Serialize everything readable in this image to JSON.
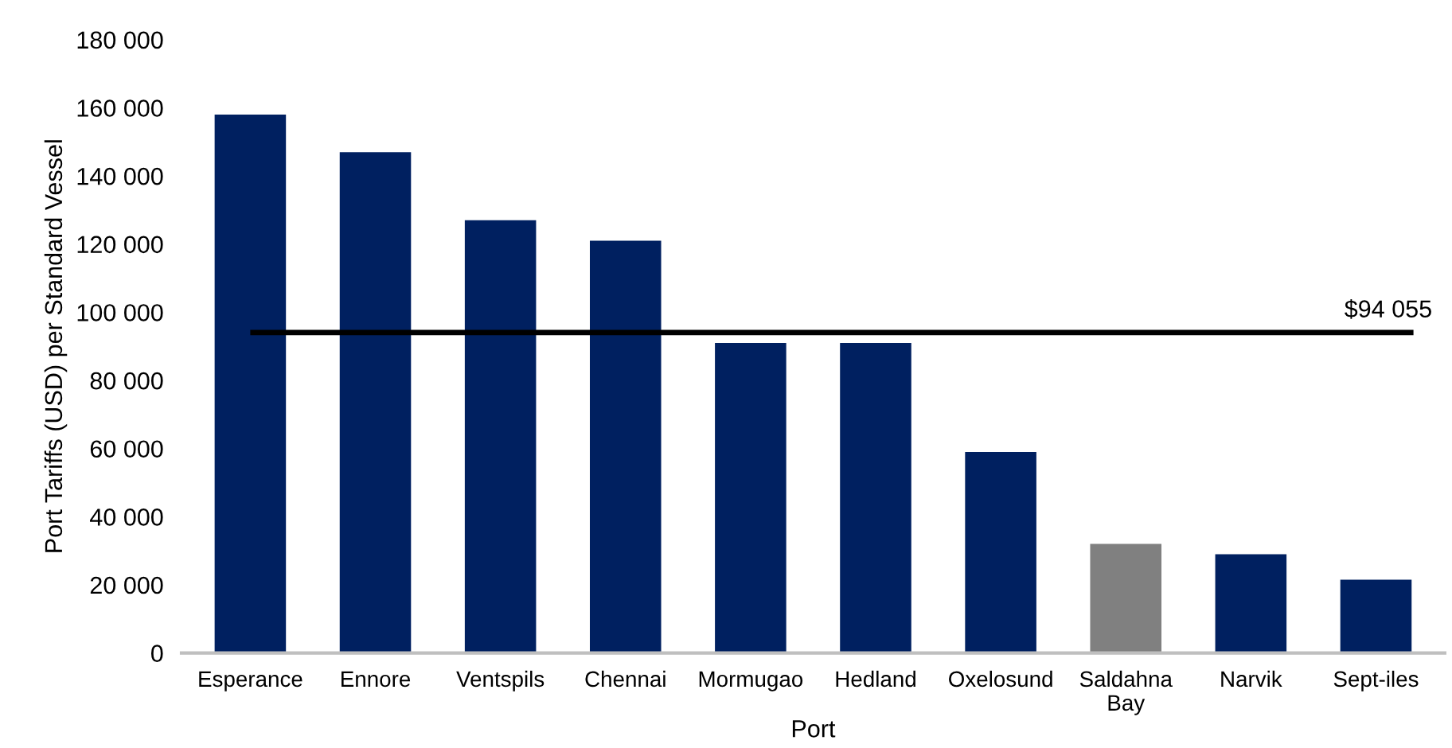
{
  "chart_data": {
    "type": "bar",
    "xlabel": "Port",
    "ylabel": "Port Tariffs (USD) per Standard Vessel",
    "categories": [
      "Esperance",
      "Ennore",
      "Ventspils",
      "Chennai",
      "Mormugao",
      "Hedland",
      "Oxelosund",
      "Saldahna\nBay",
      "Narvik",
      "Sept-iles"
    ],
    "values": [
      158000,
      147000,
      127000,
      121000,
      91000,
      91000,
      59000,
      32000,
      29000,
      21500
    ],
    "colors": [
      "#002060",
      "#002060",
      "#002060",
      "#002060",
      "#002060",
      "#002060",
      "#002060",
      "#808080",
      "#002060",
      "#002060"
    ],
    "ylim": [
      0,
      180000
    ],
    "yticks": [
      {
        "value": 0,
        "label": "0"
      },
      {
        "value": 20000,
        "label": "20 000"
      },
      {
        "value": 40000,
        "label": "40 000"
      },
      {
        "value": 60000,
        "label": "60 000"
      },
      {
        "value": 80000,
        "label": "80 000"
      },
      {
        "value": 100000,
        "label": "100 000"
      },
      {
        "value": 120000,
        "label": "120 000"
      },
      {
        "value": 140000,
        "label": "140 000"
      },
      {
        "value": 160000,
        "label": "160 000"
      },
      {
        "value": 180000,
        "label": "180 000"
      }
    ],
    "ref_lines": [
      {
        "axis": "y",
        "value": 94055,
        "label": "$94 055",
        "color": "#000000",
        "line_style": "solid"
      }
    ],
    "grid": false,
    "legend": false
  }
}
